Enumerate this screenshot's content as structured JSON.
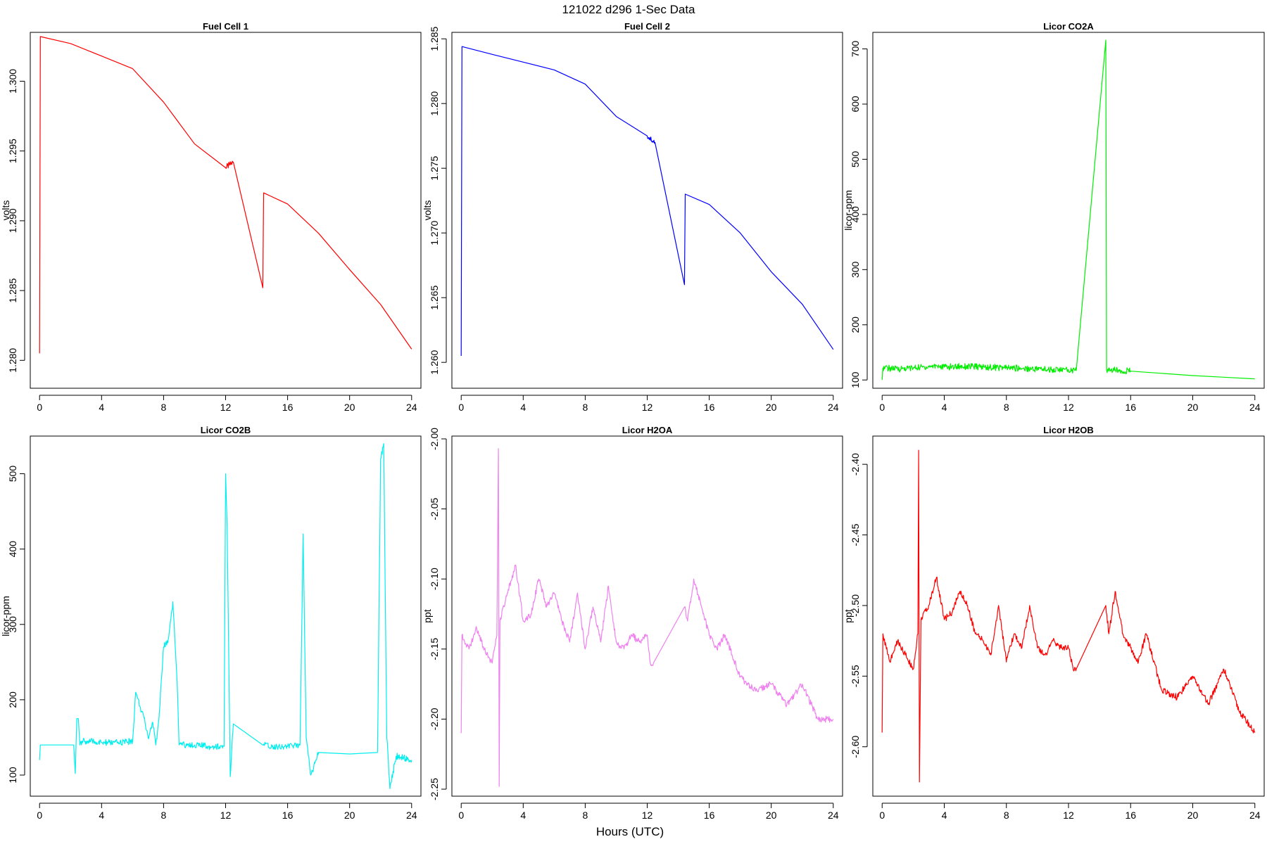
{
  "title": "121022   d296   1-Sec Data",
  "xlabel": "Hours (UTC)",
  "chart_data": [
    {
      "type": "line",
      "title": "Fuel Cell 1",
      "ylabel": "volts",
      "color": "#ff0000",
      "xlim": [
        -0.6,
        24.6
      ],
      "ylim": [
        1.278,
        1.3035
      ],
      "xticks": [
        "0",
        "4",
        "8",
        "12",
        "16",
        "20",
        "24"
      ],
      "yticks": [
        "1.280",
        "1.285",
        "1.290",
        "1.295",
        "1.300"
      ],
      "series": [
        {
          "x": [
            0,
            0.05,
            2,
            4,
            6,
            8,
            10,
            12,
            12.5,
            14.4,
            14.45,
            16,
            18,
            20,
            22,
            24
          ],
          "y": [
            1.2805,
            1.3032,
            1.3027,
            1.3018,
            1.3009,
            1.2985,
            1.2955,
            1.2938,
            1.2942,
            1.2852,
            1.292,
            1.2912,
            1.2891,
            1.2865,
            1.284,
            1.2808
          ]
        }
      ]
    },
    {
      "type": "line",
      "title": "Fuel Cell 2",
      "ylabel": "volts",
      "color": "#0000ff",
      "xlim": [
        -0.6,
        24.6
      ],
      "ylim": [
        1.258,
        1.2855
      ],
      "xticks": [
        "0",
        "4",
        "8",
        "12",
        "16",
        "20",
        "24"
      ],
      "yticks": [
        "1.260",
        "1.265",
        "1.270",
        "1.275",
        "1.280",
        "1.285"
      ],
      "series": [
        {
          "x": [
            0,
            0.05,
            2,
            4,
            6,
            8,
            10,
            12,
            12.5,
            14.4,
            14.45,
            16,
            18,
            20,
            22,
            24
          ],
          "y": [
            1.2605,
            1.2844,
            1.2838,
            1.2832,
            1.2826,
            1.2815,
            1.279,
            1.2775,
            1.277,
            1.266,
            1.273,
            1.2722,
            1.27,
            1.267,
            1.2645,
            1.261
          ]
        }
      ]
    },
    {
      "type": "line",
      "title": "Licor CO2A",
      "ylabel": "licor-ppm",
      "color": "#00ee00",
      "xlim": [
        -0.6,
        24.6
      ],
      "ylim": [
        85,
        730
      ],
      "xticks": [
        "0",
        "4",
        "8",
        "12",
        "16",
        "20",
        "24"
      ],
      "yticks": [
        "100",
        "200",
        "300",
        "400",
        "500",
        "600",
        "700"
      ],
      "series": [
        {
          "x": [
            0,
            0.05,
            1,
            2,
            3,
            3.5,
            4,
            5,
            6,
            7,
            8,
            9,
            10,
            11,
            12,
            12.5,
            14.4,
            14.45,
            15,
            16,
            18,
            20,
            22,
            24
          ],
          "y": [
            100,
            122,
            120,
            122,
            124,
            126,
            123,
            125,
            124,
            123,
            122,
            121,
            120,
            119,
            118,
            117,
            716,
            118,
            118,
            116,
            112,
            108,
            105,
            102
          ]
        }
      ]
    },
    {
      "type": "line",
      "title": "Licor CO2B",
      "ylabel": "licor-ppm",
      "color": "#00eeee",
      "xlim": [
        -0.6,
        24.6
      ],
      "ylim": [
        72,
        550
      ],
      "xticks": [
        "0",
        "4",
        "8",
        "12",
        "16",
        "20",
        "24"
      ],
      "yticks": [
        "100",
        "200",
        "300",
        "400",
        "500"
      ],
      "series": [
        {
          "x": [
            0,
            0.05,
            2.2,
            2.3,
            2.4,
            2.5,
            2.6,
            2.8,
            3,
            4,
            5,
            6,
            6.2,
            6.5,
            6.8,
            7,
            7.3,
            7.5,
            7.7,
            8,
            8.3,
            8.6,
            8.9,
            9,
            10,
            11,
            11.9,
            12,
            12.1,
            12.3,
            12.5,
            14.4,
            15,
            16,
            16.8,
            17,
            17.2,
            17.5,
            18,
            20,
            21.8,
            22,
            22.2,
            22.4,
            22.6,
            23,
            24
          ],
          "y": [
            120,
            140,
            140,
            102,
            175,
            175,
            140,
            145,
            145,
            143,
            143,
            145,
            210,
            190,
            170,
            150,
            170,
            140,
            175,
            270,
            280,
            330,
            210,
            140,
            140,
            138,
            138,
            500,
            430,
            98,
            168,
            140,
            138,
            138,
            140,
            420,
            150,
            100,
            130,
            128,
            130,
            520,
            540,
            150,
            82,
            125,
            120
          ]
        }
      ]
    },
    {
      "type": "line",
      "title": "Licor H2OA",
      "ylabel": "ppt",
      "color": "#ee82ee",
      "xlim": [
        -0.6,
        24.6
      ],
      "ylim": [
        -2.255,
        -1.998
      ],
      "xticks": [
        "0",
        "4",
        "8",
        "12",
        "16",
        "20",
        "24"
      ],
      "yticks": [
        "-2.25",
        "-2.20",
        "-2.15",
        "-2.10",
        "-2.05",
        "-2.00"
      ],
      "series": [
        {
          "x": [
            0,
            0.05,
            0.5,
            1,
            1.5,
            2,
            2.3,
            2.4,
            2.45,
            2.5,
            3,
            3.5,
            4,
            4.5,
            5,
            5.5,
            6,
            6.5,
            7,
            7.5,
            8,
            8.5,
            9,
            9.5,
            10,
            10.5,
            11,
            11.5,
            12,
            12.2,
            12.4,
            14.4,
            14.6,
            15,
            15.5,
            16,
            16.5,
            17,
            18,
            19,
            20,
            21,
            22,
            23,
            24
          ],
          "y": [
            -2.21,
            -2.14,
            -2.15,
            -2.135,
            -2.15,
            -2.16,
            -2.14,
            -2.007,
            -2.248,
            -2.13,
            -2.11,
            -2.09,
            -2.13,
            -2.125,
            -2.1,
            -2.12,
            -2.11,
            -2.13,
            -2.145,
            -2.11,
            -2.15,
            -2.12,
            -2.145,
            -2.105,
            -2.145,
            -2.15,
            -2.14,
            -2.145,
            -2.14,
            -2.16,
            -2.16,
            -2.12,
            -2.13,
            -2.1,
            -2.12,
            -2.14,
            -2.15,
            -2.14,
            -2.17,
            -2.18,
            -2.175,
            -2.19,
            -2.175,
            -2.2,
            -2.2
          ]
        }
      ]
    },
    {
      "type": "line",
      "title": "Licor H2OB",
      "ylabel": "ppt",
      "color": "#ff0000",
      "xlim": [
        -0.6,
        24.6
      ],
      "ylim": [
        -2.635,
        -2.38
      ],
      "xticks": [
        "0",
        "4",
        "8",
        "12",
        "16",
        "20",
        "24"
      ],
      "yticks": [
        "-2.60",
        "-2.55",
        "-2.50",
        "-2.45",
        "-2.40"
      ],
      "series": [
        {
          "x": [
            0,
            0.05,
            0.5,
            1,
            1.5,
            2,
            2.3,
            2.35,
            2.4,
            2.5,
            3,
            3.5,
            4,
            4.5,
            5,
            5.5,
            6,
            6.5,
            7,
            7.5,
            8,
            8.5,
            9,
            9.5,
            10,
            10.5,
            11,
            11.5,
            12,
            12.3,
            12.5,
            14.4,
            14.6,
            15,
            15.5,
            16,
            16.5,
            17,
            18,
            19,
            20,
            21,
            22,
            23,
            24
          ],
          "y": [
            -2.59,
            -2.52,
            -2.54,
            -2.525,
            -2.535,
            -2.545,
            -2.52,
            -2.39,
            -2.625,
            -2.51,
            -2.5,
            -2.48,
            -2.51,
            -2.505,
            -2.49,
            -2.5,
            -2.52,
            -2.525,
            -2.535,
            -2.5,
            -2.54,
            -2.52,
            -2.53,
            -2.5,
            -2.53,
            -2.535,
            -2.525,
            -2.53,
            -2.53,
            -2.545,
            -2.545,
            -2.5,
            -2.52,
            -2.49,
            -2.52,
            -2.53,
            -2.54,
            -2.52,
            -2.56,
            -2.565,
            -2.55,
            -2.57,
            -2.545,
            -2.575,
            -2.59
          ]
        }
      ]
    }
  ]
}
